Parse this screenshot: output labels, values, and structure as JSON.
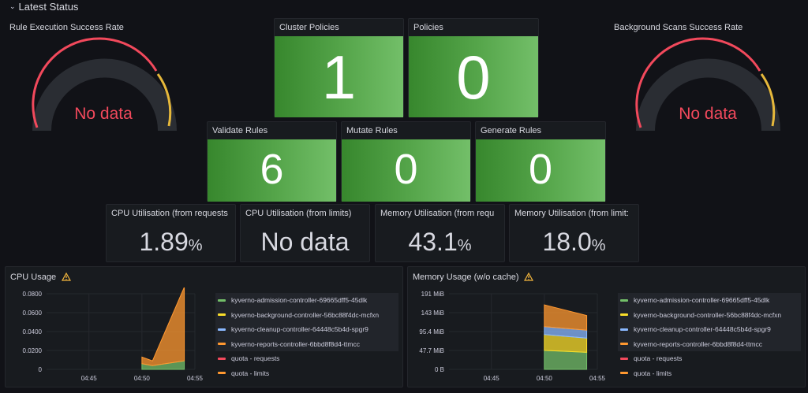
{
  "row": {
    "title": "Latest Status"
  },
  "gauges": {
    "left": {
      "title": "Rule Execution Success Rate",
      "value": "No data"
    },
    "right": {
      "title": "Background Scans Success Rate",
      "value": "No data"
    }
  },
  "stats": {
    "cluster_policies": {
      "title": "Cluster Policies",
      "value": "1"
    },
    "policies": {
      "title": "Policies",
      "value": "0"
    },
    "validate_rules": {
      "title": "Validate Rules",
      "value": "6"
    },
    "mutate_rules": {
      "title": "Mutate Rules",
      "value": "0"
    },
    "generate_rules": {
      "title": "Generate Rules",
      "value": "0"
    }
  },
  "util": {
    "cpu_requests": {
      "title": "CPU Utilisation (from requests",
      "value": "1.89",
      "unit": "%"
    },
    "cpu_limits": {
      "title": "CPU Utilisation (from limits)",
      "value": "No data",
      "unit": ""
    },
    "mem_requests": {
      "title": "Memory Utilisation (from requ",
      "value": "43.1",
      "unit": "%"
    },
    "mem_limits": {
      "title": "Memory Utilisation (from limit:",
      "value": "18.0",
      "unit": "%"
    }
  },
  "colors": {
    "green": "#73bf69",
    "yellow": "#fade2a",
    "blue": "#8ab8ff",
    "orange": "#ff9830",
    "red": "#f2495c",
    "light_blue": "#5794f2",
    "warn": "#f5b73d"
  },
  "charts": {
    "cpu": {
      "title": "CPU Usage",
      "legend": [
        {
          "label": "kyverno-admission-controller-69665dff5-45dlk",
          "color": "#73bf69"
        },
        {
          "label": "kyverno-background-controller-56bc88f4dc-mcfxn",
          "color": "#fade2a"
        },
        {
          "label": "kyverno-cleanup-controller-64448c5b4d-spgr9",
          "color": "#8ab8ff"
        },
        {
          "label": "kyverno-reports-controller-6bbd8f8d4-ttmcc",
          "color": "#ff9830"
        },
        {
          "label": "quota - requests",
          "color": "#f2495c"
        },
        {
          "label": "quota - limits",
          "color": "#ff9830"
        }
      ]
    },
    "memory": {
      "title": "Memory Usage (w/o cache)",
      "legend": [
        {
          "label": "kyverno-admission-controller-69665dff5-45dlk",
          "color": "#73bf69"
        },
        {
          "label": "kyverno-background-controller-56bc88f4dc-mcfxn",
          "color": "#fade2a"
        },
        {
          "label": "kyverno-cleanup-controller-64448c5b4d-spgr9",
          "color": "#8ab8ff"
        },
        {
          "label": "kyverno-reports-controller-6bbd8f8d4-ttmcc",
          "color": "#ff9830"
        },
        {
          "label": "quota - requests",
          "color": "#f2495c"
        },
        {
          "label": "quota - limits",
          "color": "#ff9830"
        }
      ]
    }
  },
  "chart_data": [
    {
      "type": "area",
      "title": "CPU Usage",
      "x": [
        "04:45",
        "04:50",
        "04:55"
      ],
      "ylim": [
        0,
        0.08
      ],
      "y_ticks": [
        "0.0800",
        "0.0600",
        "0.0400",
        "0.0200",
        "0"
      ],
      "series": [
        {
          "name": "kyverno-admission-controller-69665dff5-45dlk",
          "points": [
            [
              "04:50",
              0.006
            ],
            [
              "04:51",
              0.004
            ],
            [
              "04:54",
              0.009
            ]
          ]
        },
        {
          "name": "kyverno-reports-controller-6bbd8f8d4-ttmcc",
          "points": [
            [
              "04:50",
              0.007
            ],
            [
              "04:51",
              0.005
            ],
            [
              "04:54",
              0.078
            ]
          ]
        }
      ]
    },
    {
      "type": "area",
      "title": "Memory Usage (w/o cache)",
      "x": [
        "04:45",
        "04:50",
        "04:55"
      ],
      "ylim": [
        0,
        191
      ],
      "y_ticks": [
        "191 MiB",
        "143 MiB",
        "95.4 MiB",
        "47.7 MiB",
        "0 B"
      ],
      "series": [
        {
          "name": "kyverno-admission-controller-69665dff5-45dlk",
          "points": [
            [
              "04:50",
              48
            ],
            [
              "04:54",
              43
            ]
          ]
        },
        {
          "name": "kyverno-background-controller-56bc88f4dc-mcfxn",
          "points": [
            [
              "04:50",
              40
            ],
            [
              "04:54",
              36
            ]
          ]
        },
        {
          "name": "kyverno-cleanup-controller-64448c5b4d-spgr9",
          "points": [
            [
              "04:50",
              20
            ],
            [
              "04:54",
              20
            ]
          ]
        },
        {
          "name": "kyverno-reports-controller-6bbd8f8d4-ttmcc",
          "points": [
            [
              "04:50",
              55
            ],
            [
              "04:54",
              37
            ]
          ]
        }
      ]
    }
  ]
}
